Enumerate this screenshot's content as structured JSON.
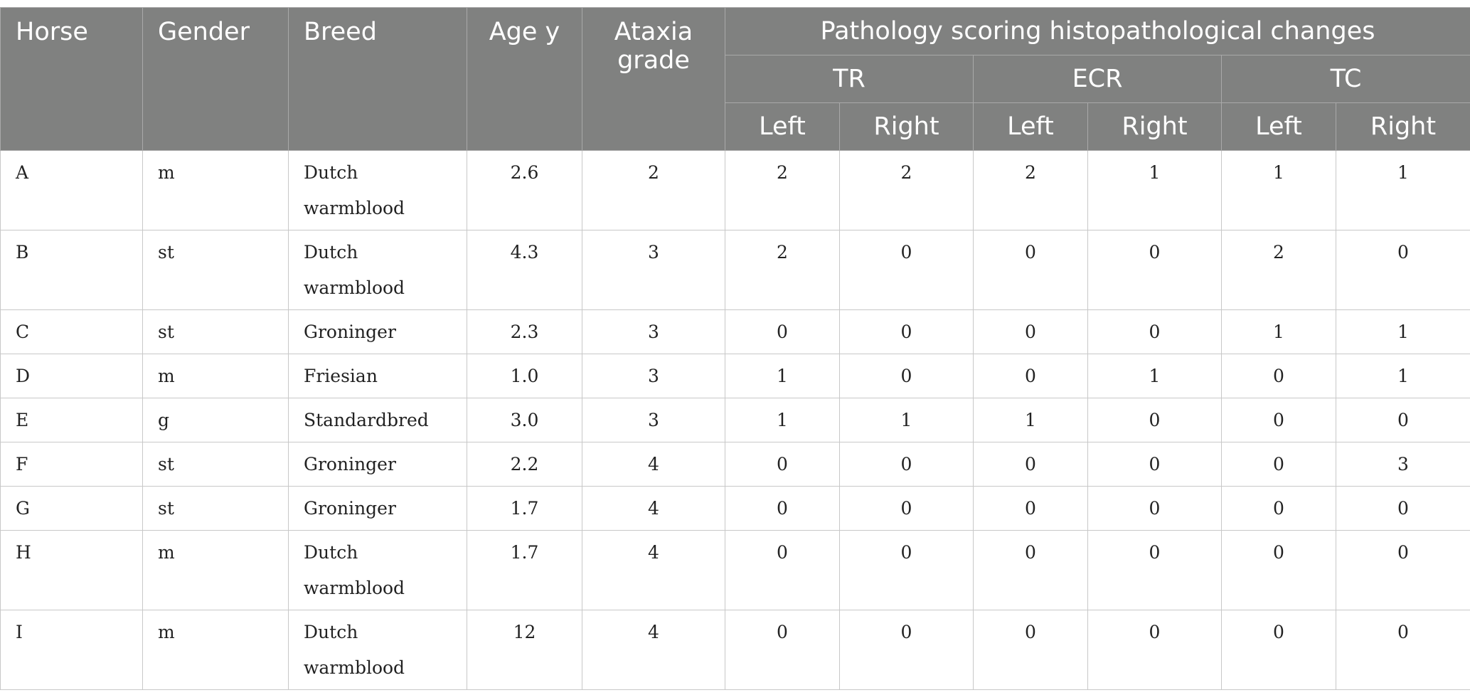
{
  "header": {
    "horse": "Horse",
    "gender": "Gender",
    "breed": "Breed",
    "age": "Age y",
    "ataxia_line1": "Ataxia",
    "ataxia_line2": "grade",
    "group_title": "Pathology scoring histopathological changes",
    "sub_groups": [
      "TR",
      "ECR",
      "TC"
    ],
    "sides": [
      "Left",
      "Right",
      "Left",
      "Right",
      "Left",
      "Right"
    ]
  },
  "rows": [
    {
      "horse": "A",
      "gender": "m",
      "breed_1": "Dutch",
      "breed_2": "warmblood",
      "age": "2.6",
      "ataxia": "2",
      "tr_left": "2",
      "tr_right": "2",
      "ecr_left": "2",
      "ecr_right": "1",
      "tc_left": "1",
      "tc_right": "1"
    },
    {
      "horse": "B",
      "gender": "st",
      "breed_1": "Dutch",
      "breed_2": "warmblood",
      "age": "4.3",
      "ataxia": "3",
      "tr_left": "2",
      "tr_right": "0",
      "ecr_left": "0",
      "ecr_right": "0",
      "tc_left": "2",
      "tc_right": "0"
    },
    {
      "horse": "C",
      "gender": "st",
      "breed_1": "Groninger",
      "breed_2": "",
      "age": "2.3",
      "ataxia": "3",
      "tr_left": "0",
      "tr_right": "0",
      "ecr_left": "0",
      "ecr_right": "0",
      "tc_left": "1",
      "tc_right": "1"
    },
    {
      "horse": "D",
      "gender": "m",
      "breed_1": "Friesian",
      "breed_2": "",
      "age": "1.0",
      "ataxia": "3",
      "tr_left": "1",
      "tr_right": "0",
      "ecr_left": "0",
      "ecr_right": "1",
      "tc_left": "0",
      "tc_right": "1"
    },
    {
      "horse": "E",
      "gender": "g",
      "breed_1": "Standardbred",
      "breed_2": "",
      "age": "3.0",
      "ataxia": "3",
      "tr_left": "1",
      "tr_right": "1",
      "ecr_left": "1",
      "ecr_right": "0",
      "tc_left": "0",
      "tc_right": "0"
    },
    {
      "horse": "F",
      "gender": "st",
      "breed_1": "Groninger",
      "breed_2": "",
      "age": "2.2",
      "ataxia": "4",
      "tr_left": "0",
      "tr_right": "0",
      "ecr_left": "0",
      "ecr_right": "0",
      "tc_left": "0",
      "tc_right": "3"
    },
    {
      "horse": "G",
      "gender": "st",
      "breed_1": "Groninger",
      "breed_2": "",
      "age": "1.7",
      "ataxia": "4",
      "tr_left": "0",
      "tr_right": "0",
      "ecr_left": "0",
      "ecr_right": "0",
      "tc_left": "0",
      "tc_right": "0"
    },
    {
      "horse": "H",
      "gender": "m",
      "breed_1": "Dutch",
      "breed_2": "warmblood",
      "age": "1.7",
      "ataxia": "4",
      "tr_left": "0",
      "tr_right": "0",
      "ecr_left": "0",
      "ecr_right": "0",
      "tc_left": "0",
      "tc_right": "0"
    },
    {
      "horse": "I",
      "gender": "m",
      "breed_1": "Dutch",
      "breed_2": "warmblood",
      "age": "12",
      "ataxia": "4",
      "tr_left": "0",
      "tr_right": "0",
      "ecr_left": "0",
      "ecr_right": "0",
      "tc_left": "0",
      "tc_right": "0"
    }
  ],
  "colors": {
    "header_bg": "#808180",
    "header_text": "#ffffff",
    "grid_line": "#c8c8c8",
    "body_text": "#222222"
  }
}
